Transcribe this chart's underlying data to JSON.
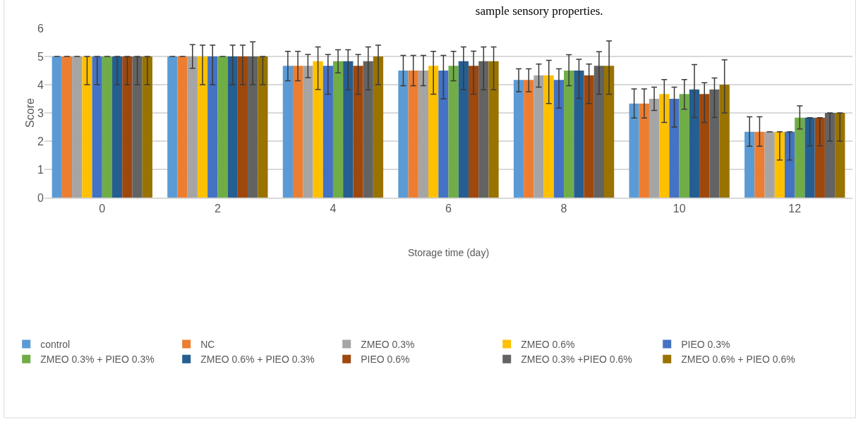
{
  "chart_data": {
    "type": "bar",
    "title": "sample sensory properties.",
    "xlabel": "Storage time (day)",
    "ylabel": "Score",
    "categories": [
      "0",
      "2",
      "4",
      "6",
      "8",
      "10",
      "12"
    ],
    "ylim": [
      0,
      6
    ],
    "yticks": [
      0,
      1,
      2,
      3,
      4,
      5,
      6
    ],
    "grid": "y",
    "legend": "bottom",
    "series": [
      {
        "name": "control",
        "color": "#5b9bd5",
        "values": [
          5,
          5,
          4.67,
          4.5,
          4.17,
          3.33,
          2.33
        ],
        "errors": [
          0,
          0,
          [
            4.14,
            5.18
          ],
          [
            3.96,
            5.04
          ],
          [
            3.75,
            4.56
          ],
          [
            2.82,
            3.85
          ],
          [
            1.82,
            2.86
          ]
        ]
      },
      {
        "name": "NC",
        "color": "#ed7d31",
        "values": [
          5,
          5,
          4.67,
          4.5,
          4.17,
          3.33,
          2.33
        ],
        "errors": [
          0,
          0,
          [
            4.14,
            5.18
          ],
          [
            3.96,
            5.04
          ],
          [
            3.75,
            4.56
          ],
          [
            2.82,
            3.85
          ],
          [
            1.82,
            2.86
          ]
        ]
      },
      {
        "name": "ZMEO 0.3%",
        "color": "#a5a5a5",
        "values": [
          5,
          5,
          4.67,
          4.5,
          4.33,
          3.5,
          2.33
        ],
        "errors": [
          0,
          [
            4.58,
            5.42
          ],
          [
            4.25,
            5.07
          ],
          [
            3.96,
            5.04
          ],
          [
            3.91,
            4.73
          ],
          [
            3.09,
            3.91
          ],
          0
        ]
      },
      {
        "name": "ZMEO 0.6%",
        "color": "#ffc000",
        "values": [
          5,
          5,
          4.83,
          4.67,
          4.33,
          3.67,
          2.33
        ],
        "errors": [
          [
            4,
            5
          ],
          [
            4,
            5.4
          ],
          [
            3.83,
            5.34
          ],
          [
            3.66,
            5.18
          ],
          [
            3.33,
            4.86
          ],
          [
            2.66,
            4.18
          ],
          [
            1.33,
            2.33
          ]
        ]
      },
      {
        "name": "PIEO 0.3%",
        "color": "#4472c4",
        "values": [
          5,
          5,
          4.67,
          4.5,
          4.17,
          3.5,
          2.33
        ],
        "errors": [
          [
            4,
            5
          ],
          [
            4,
            5.4
          ],
          [
            3.66,
            5.07
          ],
          [
            3.5,
            5.04
          ],
          [
            3.17,
            4.56
          ],
          [
            2.5,
            3.91
          ],
          [
            1.33,
            2.33
          ]
        ]
      },
      {
        "name": "ZMEO 0.3% + PIEO 0.3%",
        "color": "#70ad47",
        "values": [
          5,
          5,
          4.83,
          4.67,
          4.5,
          3.67,
          2.83
        ],
        "errors": [
          0,
          0,
          [
            4.42,
            5.24
          ],
          [
            4.14,
            5.18
          ],
          [
            3.96,
            5.06
          ],
          [
            3.13,
            4.18
          ],
          [
            2.43,
            3.25
          ]
        ]
      },
      {
        "name": "ZMEO 0.6% + PIEO 0.3%",
        "color": "#255e91",
        "values": [
          5,
          5,
          4.83,
          4.83,
          4.5,
          3.83,
          2.83
        ],
        "errors": [
          [
            4,
            5
          ],
          [
            4,
            5.4
          ],
          [
            3.82,
            5.24
          ],
          [
            3.82,
            5.34
          ],
          [
            3.51,
            4.9
          ],
          [
            2.84,
            4.71
          ],
          [
            1.83,
            2.83
          ]
        ]
      },
      {
        "name": "PIEO 0.6%",
        "color": "#9e480e",
        "values": [
          5,
          5,
          4.67,
          4.67,
          4.33,
          3.67,
          2.83
        ],
        "errors": [
          [
            4,
            5
          ],
          [
            4,
            5.4
          ],
          [
            3.66,
            5.07
          ],
          [
            3.66,
            5.19
          ],
          [
            3.33,
            4.73
          ],
          [
            2.66,
            4.07
          ],
          [
            1.83,
            2.83
          ]
        ]
      },
      {
        "name": "ZMEO 0.3% +PIEO 0.6%",
        "color": "#636363",
        "values": [
          5,
          5,
          4.83,
          4.83,
          4.67,
          3.83,
          3
        ],
        "errors": [
          [
            4,
            5
          ],
          [
            4,
            5.52
          ],
          [
            3.82,
            5.34
          ],
          [
            3.82,
            5.34
          ],
          [
            3.66,
            5.17
          ],
          [
            2.84,
            4.24
          ],
          [
            2,
            3
          ]
        ]
      },
      {
        "name": "ZMEO 0.6% + PIEO 0.6%",
        "color": "#997300",
        "values": [
          5,
          5,
          5,
          4.83,
          4.67,
          4,
          3
        ],
        "errors": [
          [
            4,
            5
          ],
          [
            4,
            5
          ],
          [
            4,
            5.4
          ],
          [
            3.82,
            5.34
          ],
          [
            3.66,
            5.55
          ],
          [
            3,
            4.88
          ],
          [
            2,
            3
          ]
        ]
      }
    ]
  }
}
